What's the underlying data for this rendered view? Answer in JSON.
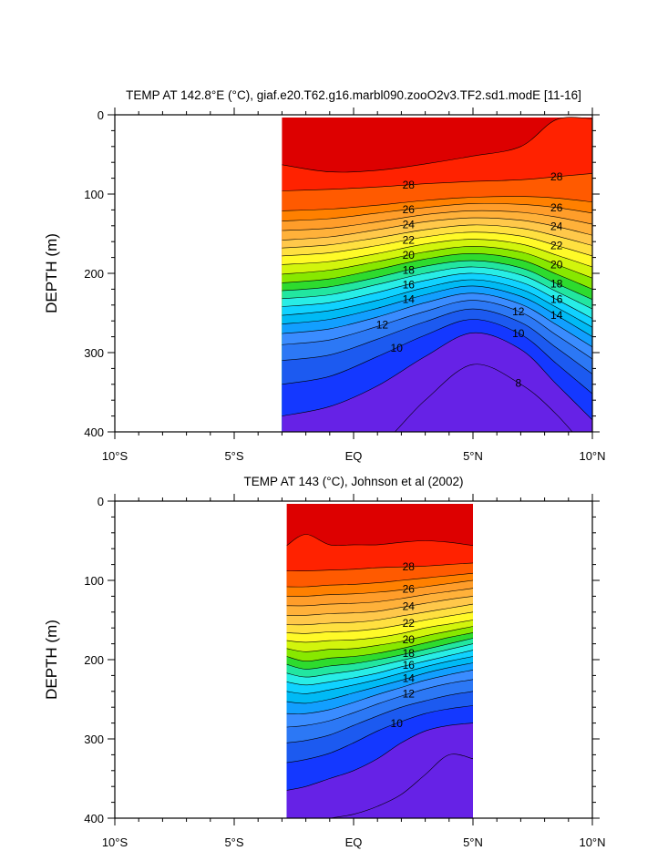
{
  "chart_data": [
    {
      "type": "heatmap",
      "subtype": "filled-contour-section",
      "title": "TEMP AT 142.8°E (°C), giaf.e20.T62.g16.marbl090.zooO2v3.TF2.sd1.modE [11-16]",
      "ylabel": "DEPTH (m)",
      "xlabel": "",
      "xlim": [
        -10,
        10
      ],
      "ylim": [
        0,
        400
      ],
      "y_inverted": true,
      "x_ticks": [
        {
          "value": -10,
          "label": "10°S"
        },
        {
          "value": -5,
          "label": "5°S"
        },
        {
          "value": 0,
          "label": "EQ"
        },
        {
          "value": 5,
          "label": "5°N"
        },
        {
          "value": 10,
          "label": "10°N"
        }
      ],
      "y_ticks": [
        {
          "value": 0,
          "label": "0"
        },
        {
          "value": 100,
          "label": "100"
        },
        {
          "value": 200,
          "label": "200"
        },
        {
          "value": 300,
          "label": "300"
        },
        {
          "value": 400,
          "label": "400"
        }
      ],
      "data_x_range": [
        -3,
        10
      ],
      "contour_interval": 1,
      "contour_labels": [
        "28",
        "26",
        "24",
        "22",
        "20",
        "18",
        "16",
        "14",
        "12",
        "10",
        "8"
      ],
      "isotherm_depths": {
        "x": [
          -3,
          -1,
          1,
          3,
          5,
          7,
          8.5,
          10
        ],
        "levels": [
          {
            "level": 29,
            "depths": [
              63,
              72,
              70,
              62,
              52,
              40,
              6,
              5
            ]
          },
          {
            "level": 28,
            "depths": [
              96,
              94,
              91,
              87,
              84,
              82,
              78,
              74
            ]
          },
          {
            "level": 27,
            "depths": [
              121,
              119,
              114,
              108,
              104,
              103,
              105,
              110
            ]
          },
          {
            "level": 26,
            "depths": [
              134,
              131,
              124,
              117,
              112,
              113,
              117,
              124
            ]
          },
          {
            "level": 25,
            "depths": [
              146,
              143,
              135,
              126,
              121,
              123,
              129,
              138
            ]
          },
          {
            "level": 24,
            "depths": [
              158,
              154,
              145,
              135,
              130,
              133,
              141,
              152
            ]
          },
          {
            "level": 23,
            "depths": [
              168,
              164,
              155,
              145,
              139,
              143,
              153,
              165
            ]
          },
          {
            "level": 22,
            "depths": [
              178,
              174,
              165,
              154,
              148,
              153,
              165,
              178
            ]
          },
          {
            "level": 21,
            "depths": [
              189,
              185,
              175,
              163,
              157,
              163,
              177,
              192
            ]
          },
          {
            "level": 20,
            "depths": [
              201,
              196,
              185,
              173,
              166,
              173,
              189,
              206
            ]
          },
          {
            "level": 19,
            "depths": [
              212,
              207,
              195,
              182,
              175,
              183,
              201,
              220
            ]
          },
          {
            "level": 18,
            "depths": [
              222,
              217,
              205,
              191,
              184,
              193,
              213,
              233
            ]
          },
          {
            "level": 17,
            "depths": [
              232,
              227,
              214,
              200,
              192,
              202,
              223,
              245
            ]
          },
          {
            "level": 16,
            "depths": [
              242,
              237,
              224,
              209,
              200,
              211,
              233,
              257
            ]
          },
          {
            "level": 15,
            "depths": [
              253,
              247,
              234,
              218,
              208,
              220,
              243,
              268
            ]
          },
          {
            "level": 14,
            "depths": [
              264,
              258,
              244,
              227,
              216,
              229,
              253,
              280
            ]
          },
          {
            "level": 13,
            "depths": [
              276,
              270,
              255,
              237,
              225,
              239,
              265,
              293
            ]
          },
          {
            "level": 12,
            "depths": [
              290,
              284,
              267,
              248,
              234,
              249,
              278,
              308
            ]
          },
          {
            "level": 11,
            "depths": [
              310,
              303,
              283,
              261,
              245,
              262,
              294,
              327
            ]
          },
          {
            "level": 10,
            "depths": [
              340,
              330,
              305,
              278,
              258,
              277,
              314,
              352
            ]
          },
          {
            "level": 9,
            "depths": [
              380,
              368,
              342,
              305,
              275,
              296,
              340,
              385
            ]
          },
          {
            "level": 8,
            "depths": [
              450,
              445,
              420,
              360,
              315,
              340,
              378,
              430
            ]
          }
        ]
      }
    },
    {
      "type": "heatmap",
      "subtype": "filled-contour-section",
      "title": "TEMP AT 143 (°C), Johnson et al (2002)",
      "ylabel": "DEPTH (m)",
      "xlabel": "",
      "xlim": [
        -10,
        10
      ],
      "ylim": [
        0,
        400
      ],
      "y_inverted": true,
      "x_ticks": [
        {
          "value": -10,
          "label": "10°S"
        },
        {
          "value": -5,
          "label": "5°S"
        },
        {
          "value": 0,
          "label": "EQ"
        },
        {
          "value": 5,
          "label": "5°N"
        },
        {
          "value": 10,
          "label": "10°N"
        }
      ],
      "y_ticks": [
        {
          "value": 0,
          "label": "0"
        },
        {
          "value": 100,
          "label": "100"
        },
        {
          "value": 200,
          "label": "200"
        },
        {
          "value": 300,
          "label": "300"
        },
        {
          "value": 400,
          "label": "400"
        }
      ],
      "data_x_range": [
        -2.8,
        5
      ],
      "contour_interval": 1,
      "contour_labels": [
        "28",
        "26",
        "24",
        "22",
        "20",
        "18",
        "16",
        "14",
        "12",
        "10"
      ],
      "isotherm_depths": {
        "x": [
          -2.8,
          -2,
          -1,
          0,
          1,
          2,
          3,
          4,
          5
        ],
        "levels": [
          {
            "level": 29,
            "depths": [
              56,
              42,
              55,
              55,
              55,
              52,
              50,
              52,
              56
            ]
          },
          {
            "level": 28,
            "depths": [
              88,
              88,
              87,
              86,
              84,
              83,
              82,
              80,
              78
            ]
          },
          {
            "level": 27,
            "depths": [
              108,
              108,
              106,
              105,
              103,
              100,
              97,
              94,
              91
            ]
          },
          {
            "level": 26,
            "depths": [
              120,
              120,
              118,
              117,
              115,
              112,
              108,
              104,
              100
            ]
          },
          {
            "level": 25,
            "depths": [
              132,
              132,
              130,
              129,
              127,
              123,
              118,
              114,
              110
            ]
          },
          {
            "level": 24,
            "depths": [
              144,
              144,
              142,
              141,
              139,
              134,
              129,
              124,
              120
            ]
          },
          {
            "level": 23,
            "depths": [
              156,
              156,
              154,
              153,
              150,
              145,
              140,
              135,
              130
            ]
          },
          {
            "level": 22,
            "depths": [
              166,
              167,
              165,
              164,
              161,
              156,
              150,
              145,
              140
            ]
          },
          {
            "level": 21,
            "depths": [
              176,
              178,
              176,
              175,
              172,
              167,
              160,
              155,
              150
            ]
          },
          {
            "level": 20,
            "depths": [
              186,
              190,
              187,
              186,
              182,
              177,
              170,
              164,
              158
            ]
          },
          {
            "level": 19,
            "depths": [
              196,
              202,
              198,
              196,
              192,
              186,
              179,
              172,
              166
            ]
          },
          {
            "level": 18,
            "depths": [
              206,
              212,
              208,
              205,
              200,
              194,
              187,
              180,
              173
            ]
          },
          {
            "level": 17,
            "depths": [
              217,
              222,
              218,
              214,
              208,
              201,
              194,
              187,
              180
            ]
          },
          {
            "level": 16,
            "depths": [
              228,
              232,
              228,
              223,
              217,
              209,
              202,
              195,
              188
            ]
          },
          {
            "level": 15,
            "depths": [
              240,
              243,
              238,
              232,
              225,
              217,
              209,
              202,
              196
            ]
          },
          {
            "level": 14,
            "depths": [
              253,
              255,
              250,
              242,
              234,
              226,
              217,
              210,
              204
            ]
          },
          {
            "level": 13,
            "depths": [
              268,
              268,
              263,
              254,
              244,
              235,
              226,
              219,
              213
            ]
          },
          {
            "level": 12,
            "depths": [
              285,
              283,
              277,
              267,
              256,
              246,
              237,
              230,
              225
            ]
          },
          {
            "level": 11,
            "depths": [
              305,
              302,
              295,
              283,
              271,
              260,
              252,
              245,
              240
            ]
          },
          {
            "level": 10,
            "depths": [
              330,
              326,
              318,
              305,
              290,
              278,
              268,
              262,
              258
            ]
          },
          {
            "level": 9,
            "depths": [
              365,
              360,
              350,
              340,
              325,
              305,
              290,
              283,
              280
            ]
          },
          {
            "level": 8,
            "depths": [
              410,
              405,
              400,
              395,
              385,
              370,
              345,
              320,
              325
            ]
          }
        ]
      }
    }
  ]
}
